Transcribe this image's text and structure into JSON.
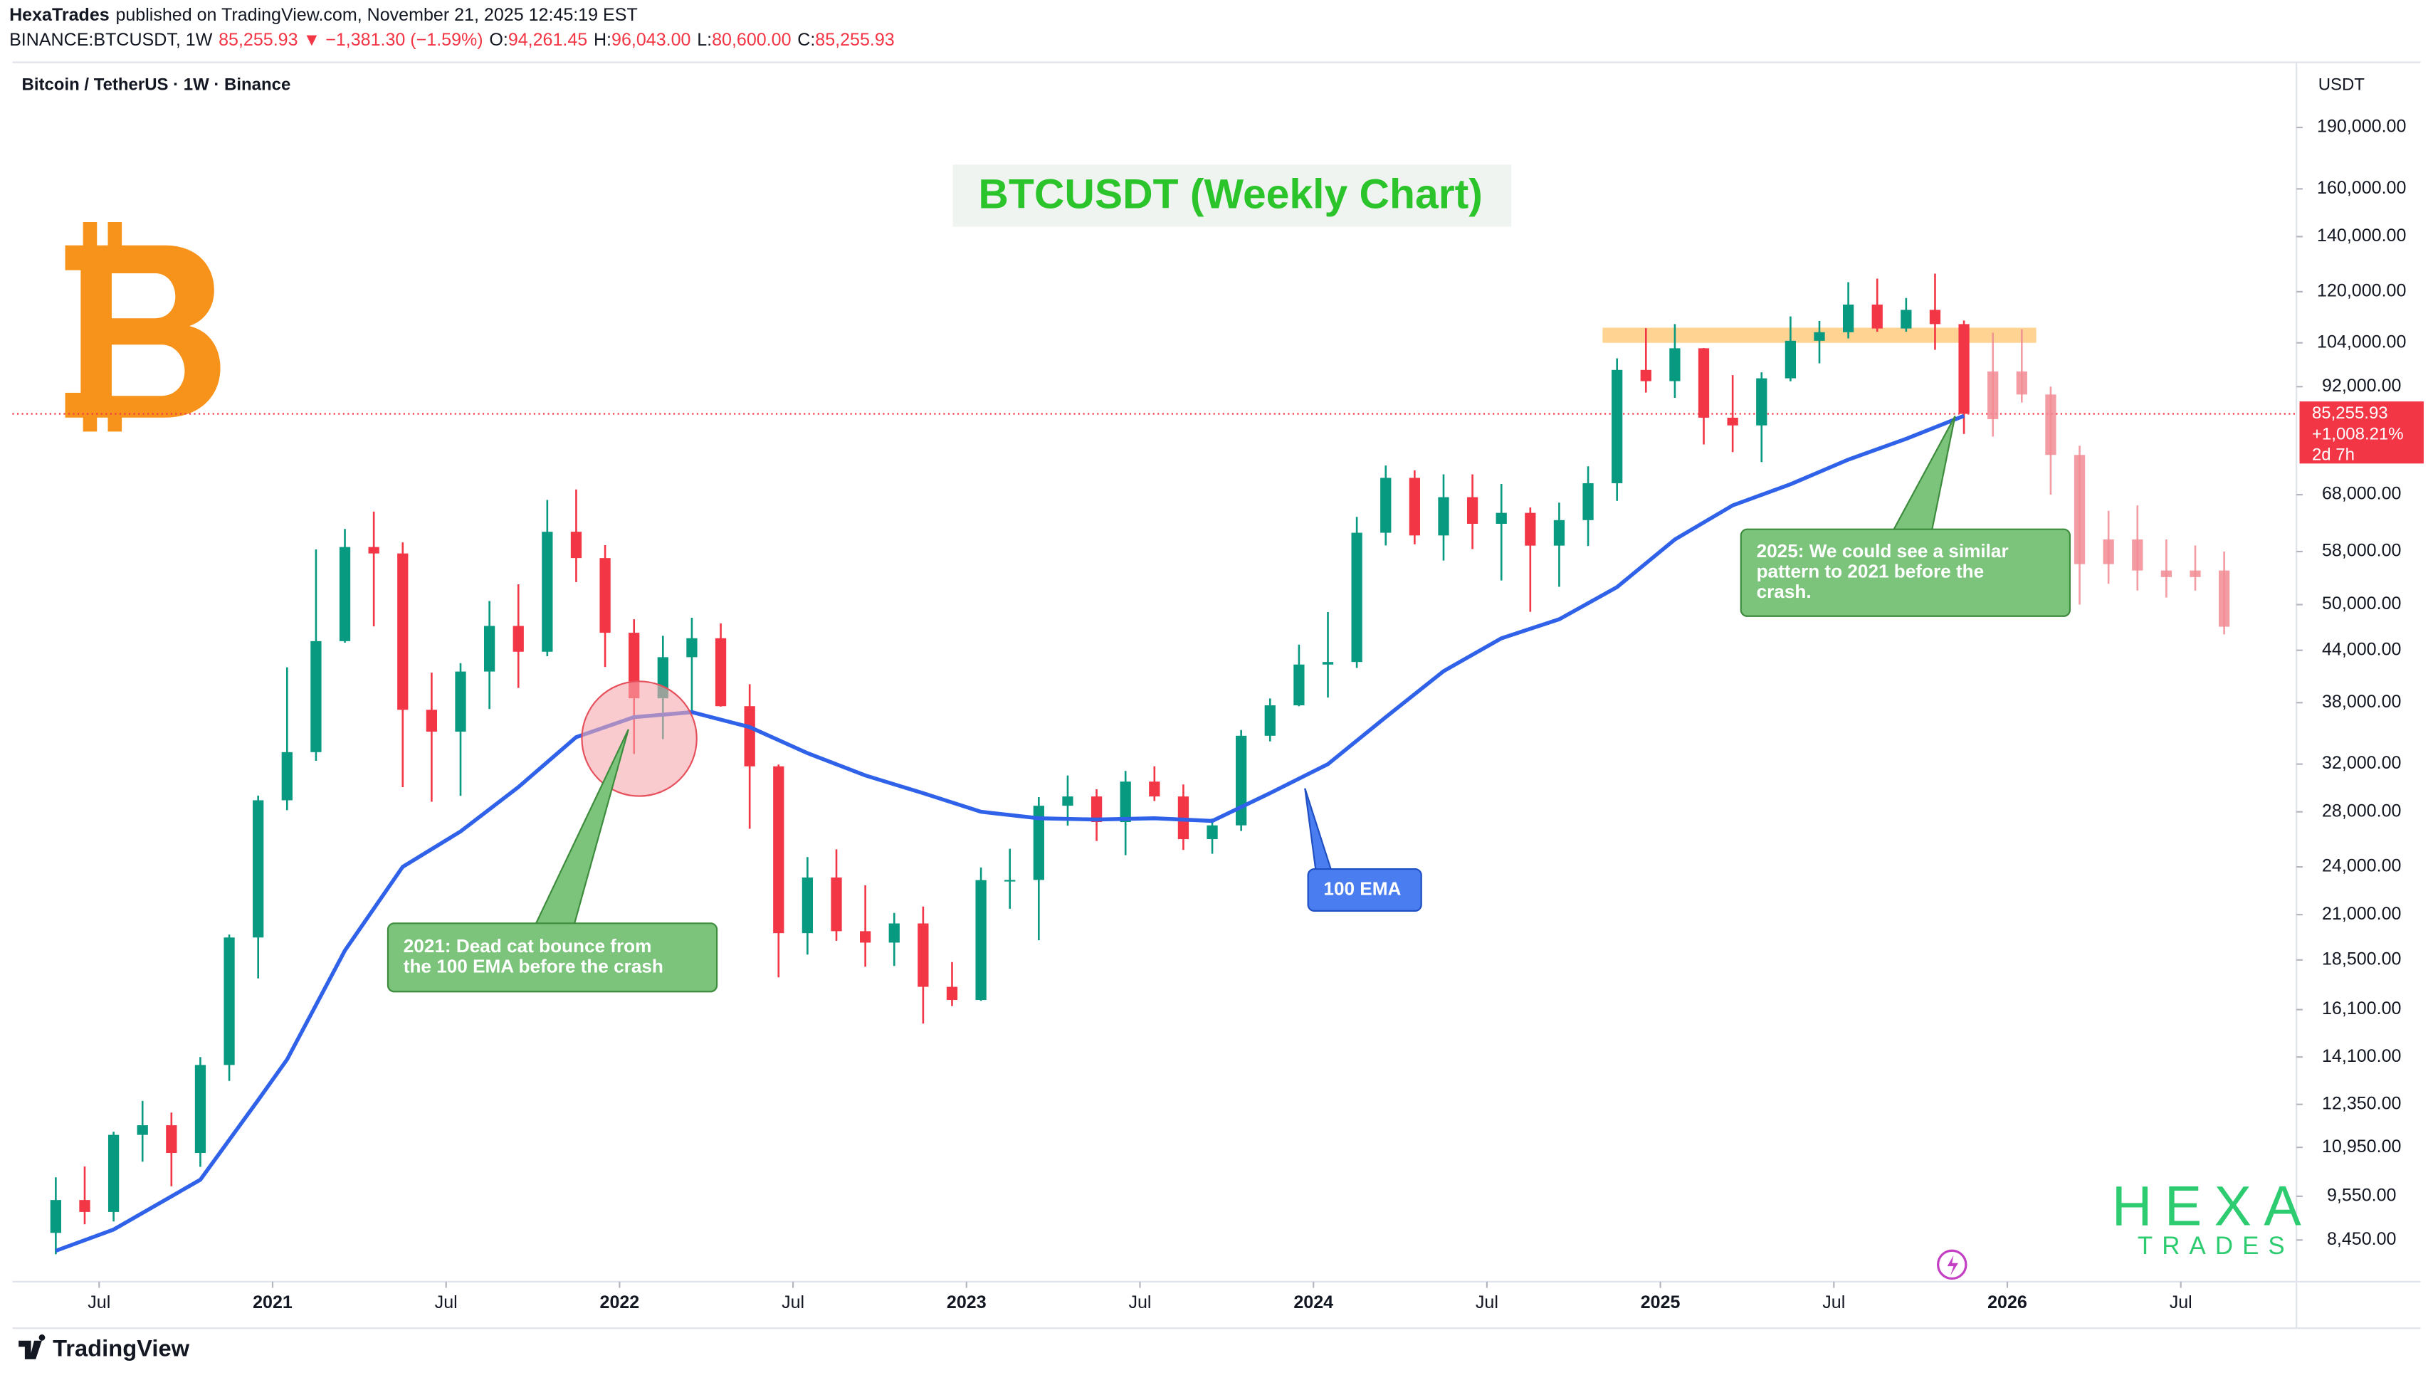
{
  "header": {
    "publisher": "HexaTrades",
    "published": "published on TradingView.com, November 21, 2025 12:45:19 EST",
    "symbol": "BINANCE:BTCUSDT, 1W",
    "change": "85,255.93 ▼ −1,381.30 (−1.59%)",
    "ohlc": [
      {
        "key": "O:",
        "value": "94,261.45"
      },
      {
        "key": "H:",
        "value": "96,043.00"
      },
      {
        "key": "L:",
        "value": "80,600.00"
      },
      {
        "key": "C:",
        "value": "85,255.93"
      }
    ]
  },
  "footer": {
    "brand": "TradingView"
  },
  "chart_data": {
    "type": "candlestick",
    "title": "BTCUSDT (Weekly Chart)",
    "legend": "Bitcoin / TetherUS · 1W · Binance",
    "y_unit": "USDT",
    "log_scale": true,
    "grid": false,
    "up_color": "#089981",
    "down_color": "#f23645",
    "x": [
      "2020-05",
      "2020-06",
      "2020-07",
      "2020-08",
      "2020-09",
      "2020-10",
      "2020-11",
      "2020-12",
      "2021-01",
      "2021-02",
      "2021-03",
      "2021-04",
      "2021-05",
      "2021-06",
      "2021-07",
      "2021-08",
      "2021-09",
      "2021-10",
      "2021-11",
      "2021-12",
      "2022-01",
      "2022-02",
      "2022-03",
      "2022-04",
      "2022-05",
      "2022-06",
      "2022-07",
      "2022-08",
      "2022-09",
      "2022-10",
      "2022-11",
      "2022-12",
      "2023-01",
      "2023-02",
      "2023-03",
      "2023-04",
      "2023-05",
      "2023-06",
      "2023-07",
      "2023-08",
      "2023-09",
      "2023-10",
      "2023-11",
      "2023-12",
      "2024-01",
      "2024-02",
      "2024-03",
      "2024-04",
      "2024-05",
      "2024-06",
      "2024-07",
      "2024-08",
      "2024-09",
      "2024-10",
      "2024-11",
      "2024-12",
      "2025-01",
      "2025-02",
      "2025-03",
      "2025-04",
      "2025-05",
      "2025-06",
      "2025-07",
      "2025-08",
      "2025-09",
      "2025-10",
      "2025-11"
    ],
    "open": [
      8620,
      9450,
      9140,
      11340,
      11650,
      10780,
      13790,
      19700,
      28920,
      33090,
      45140,
      58740,
      57690,
      37250,
      35040,
      41460,
      47100,
      43820,
      61300,
      56950,
      46210,
      38470,
      43160,
      45510,
      37630,
      31800,
      19940,
      23300,
      20050,
      19420,
      20490,
      17160,
      16540,
      23130,
      23140,
      28480,
      29230,
      27210,
      30470,
      29230,
      25940,
      26960,
      34640,
      37720,
      42280,
      42580,
      61130,
      71280,
      60670,
      67530,
      62680,
      64630,
      58970,
      63330,
      70220,
      96410,
      93430,
      102430,
      84350,
      82550,
      94170,
      104600,
      107140,
      115760,
      108250,
      114050,
      109600
    ],
    "high": [
      10070,
      10380,
      11440,
      12470,
      12070,
      14100,
      19860,
      29300,
      41950,
      58350,
      61780,
      64850,
      59500,
      41330,
      42450,
      50500,
      52920,
      67000,
      69000,
      59050,
      47990,
      45820,
      48190,
      47440,
      40020,
      31960,
      24670,
      25210,
      22800,
      21100,
      21480,
      18390,
      23960,
      25250,
      29180,
      31000,
      29820,
      31390,
      31800,
      30230,
      27480,
      35200,
      38450,
      44700,
      48970,
      63910,
      73780,
      72800,
      71980,
      71990,
      70080,
      65600,
      66500,
      73620,
      99590,
      108350,
      109590,
      102500,
      95000,
      95760,
      111980,
      110580,
      123220,
      124470,
      117900,
      126200,
      110700
    ],
    "low": [
      8120,
      8830,
      8900,
      10520,
      9820,
      10370,
      13190,
      17570,
      28130,
      32300,
      44950,
      47040,
      30000,
      28800,
      29280,
      37330,
      39600,
      43280,
      53250,
      42000,
      32920,
      34320,
      37160,
      37580,
      26700,
      17620,
      18780,
      19520,
      18150,
      18190,
      15480,
      16260,
      16500,
      21350,
      19550,
      26940,
      25810,
      24800,
      28860,
      25170,
      24900,
      26540,
      34100,
      37620,
      38550,
      41880,
      59000,
      59190,
      56550,
      58400,
      53490,
      49000,
      52550,
      58900,
      66840,
      90500,
      89160,
      78260,
      76600,
      74500,
      93380,
      98200,
      105300,
      107260,
      107270,
      102000,
      80600
    ],
    "close": [
      9450,
      9140,
      11340,
      11650,
      10780,
      13790,
      19700,
      28920,
      33090,
      45140,
      58740,
      57690,
      37250,
      35040,
      41460,
      47100,
      43820,
      61300,
      56950,
      46210,
      38470,
      43160,
      45510,
      37630,
      31800,
      19940,
      23300,
      20050,
      19420,
      20490,
      17160,
      16540,
      23130,
      23140,
      28480,
      29230,
      27210,
      30470,
      29230,
      25940,
      26960,
      34640,
      37720,
      42280,
      42580,
      61130,
      71280,
      60670,
      67530,
      62680,
      64630,
      58970,
      63330,
      70220,
      96410,
      93430,
      102430,
      84350,
      82550,
      94170,
      104600,
      107140,
      115760,
      108250,
      114050,
      109600,
      85255.93
    ],
    "projection": {
      "color": "#f28b94",
      "x": [
        "2025-12",
        "2026-01",
        "2026-02",
        "2026-03",
        "2026-04",
        "2026-05",
        "2026-06",
        "2026-07",
        "2026-08"
      ],
      "open": [
        84000,
        96000,
        90000,
        76000,
        56000,
        60000,
        55000,
        54000,
        55000
      ],
      "high": [
        107000,
        108000,
        92000,
        78000,
        65000,
        66000,
        60000,
        59000,
        58000
      ],
      "low": [
        80000,
        88000,
        68000,
        50000,
        53000,
        52000,
        51000,
        52000,
        46000
      ],
      "close": [
        96000,
        90000,
        76000,
        56000,
        60000,
        55000,
        54000,
        55000,
        47000
      ]
    },
    "ema": {
      "color": "#2f62e8",
      "x": [
        "2020-05",
        "2020-07",
        "2020-10",
        "2020-12",
        "2021-01",
        "2021-03",
        "2021-05",
        "2021-07",
        "2021-09",
        "2021-11",
        "2022-01",
        "2022-03",
        "2022-05",
        "2022-07",
        "2022-09",
        "2022-11",
        "2023-01",
        "2023-03",
        "2023-05",
        "2023-07",
        "2023-09",
        "2023-11",
        "2024-01",
        "2024-03",
        "2024-05",
        "2024-07",
        "2024-09",
        "2024-11",
        "2025-01",
        "2025-03",
        "2025-05",
        "2025-07",
        "2025-09",
        "2025-11"
      ],
      "values": [
        8200,
        8700,
        10000,
        12500,
        14000,
        19000,
        24000,
        26500,
        30000,
        34500,
        36500,
        37000,
        35500,
        33000,
        31000,
        29500,
        28000,
        27500,
        27400,
        27500,
        27300,
        29500,
        32000,
        36500,
        41500,
        45500,
        48000,
        52500,
        60000,
        66000,
        70000,
        75000,
        79500,
        84800
      ]
    },
    "zone": {
      "low": 104000,
      "high": 108500,
      "x": [
        "2024-11",
        "2026-02"
      ],
      "color": "#ffcc80"
    },
    "price_line": {
      "value": 85255.93,
      "label": "85,255.93",
      "change": "+1,008.21%",
      "countdown": "2d 7h",
      "color": "#f23645"
    },
    "xlim": [
      "2020-04",
      "2026-11"
    ],
    "xticks": [
      {
        "value": "2020-07",
        "label": "Jul"
      },
      {
        "value": "2021-01",
        "label": "2021"
      },
      {
        "value": "2021-07",
        "label": "Jul"
      },
      {
        "value": "2022-01",
        "label": "2022"
      },
      {
        "value": "2022-07",
        "label": "Jul"
      },
      {
        "value": "2023-01",
        "label": "2023"
      },
      {
        "value": "2023-07",
        "label": "Jul"
      },
      {
        "value": "2024-01",
        "label": "2024"
      },
      {
        "value": "2024-07",
        "label": "Jul"
      },
      {
        "value": "2025-01",
        "label": "2025"
      },
      {
        "value": "2025-07",
        "label": "Jul"
      },
      {
        "value": "2026-01",
        "label": "2026"
      },
      {
        "value": "2026-07",
        "label": "Jul"
      }
    ],
    "ylim": [
      7520,
      228000
    ],
    "yticks": [
      {
        "value": 8450,
        "label": "8,450.00"
      },
      {
        "value": 9550,
        "label": "9,550.00"
      },
      {
        "value": 10950,
        "label": "10,950.00"
      },
      {
        "value": 12350,
        "label": "12,350.00"
      },
      {
        "value": 14100,
        "label": "14,100.00"
      },
      {
        "value": 16100,
        "label": "16,100.00"
      },
      {
        "value": 18500,
        "label": "18,500.00"
      },
      {
        "value": 21000,
        "label": "21,000.00"
      },
      {
        "value": 24000,
        "label": "24,000.00"
      },
      {
        "value": 28000,
        "label": "28,000.00"
      },
      {
        "value": 32000,
        "label": "32,000.00"
      },
      {
        "value": 38000,
        "label": "38,000.00"
      },
      {
        "value": 44000,
        "label": "44,000.00"
      },
      {
        "value": 50000,
        "label": "50,000.00"
      },
      {
        "value": 58000,
        "label": "58,000.00"
      },
      {
        "value": 68000,
        "label": "68,000.00"
      },
      {
        "value": 92000,
        "label": "92,000.00"
      },
      {
        "value": 104000,
        "label": "104,000.00"
      },
      {
        "value": 120000,
        "label": "120,000.00"
      },
      {
        "value": 140000,
        "label": "140,000.00"
      },
      {
        "value": 160000,
        "label": "160,000.00"
      },
      {
        "value": 190000,
        "label": "190,000.00"
      }
    ],
    "annotations": [
      {
        "lines": [
          "2021:  Dead cat bounce from",
          "the 100 EMA before the crash"
        ]
      },
      {
        "lines": [
          "2025: We could see a similar",
          "pattern to 2021 before the",
          "crash."
        ]
      },
      {
        "lines": [
          "100 EMA"
        ]
      }
    ],
    "watermark": {
      "top": "HEXA",
      "bottom": "TRADES"
    }
  }
}
